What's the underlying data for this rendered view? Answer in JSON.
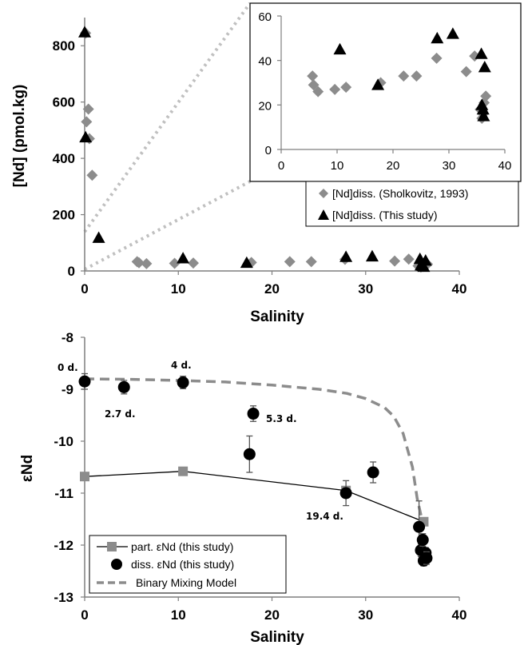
{
  "chart_data": [
    {
      "id": "top",
      "type": "scatter",
      "xlabel": "Salinity",
      "ylabel": "[Nd] (pmol.kg)",
      "xlim": [
        0,
        40
      ],
      "ylim": [
        0,
        900
      ],
      "xticks": [
        "0",
        "10",
        "20",
        "30",
        "40"
      ],
      "yticks": [
        "0",
        "200",
        "400",
        "600",
        "800"
      ],
      "grid": false,
      "series": [
        {
          "name": "[Nd]diss. (Sholkovitz, 1993)",
          "marker": "diamond",
          "color": "#8c8c8c",
          "points": [
            [
              0.1,
              845
            ],
            [
              0.2,
              530
            ],
            [
              0.4,
              575
            ],
            [
              0.5,
              470
            ],
            [
              0.8,
              340
            ],
            [
              5.6,
              33
            ],
            [
              5.8,
              29
            ],
            [
              6.6,
              26
            ],
            [
              9.6,
              27
            ],
            [
              11.6,
              28
            ],
            [
              17.8,
              30
            ],
            [
              21.9,
              33
            ],
            [
              24.2,
              33
            ],
            [
              27.8,
              41
            ],
            [
              33.1,
              35
            ],
            [
              34.6,
              42
            ],
            [
              35.6,
              18
            ],
            [
              35.9,
              14
            ],
            [
              36.1,
              16
            ],
            [
              36.3,
              21
            ],
            [
              36.6,
              24
            ]
          ]
        },
        {
          "name": "[Nd]diss. (This study)",
          "marker": "triangle",
          "color": "#000000",
          "points": [
            [
              0.0,
              848
            ],
            [
              0.1,
              475
            ],
            [
              1.5,
              118
            ],
            [
              10.5,
              45
            ],
            [
              17.3,
              29
            ],
            [
              27.9,
              50
            ],
            [
              30.7,
              52
            ],
            [
              35.8,
              43
            ],
            [
              35.9,
              20
            ],
            [
              36.1,
              18
            ],
            [
              36.2,
              15
            ],
            [
              36.4,
              37
            ]
          ]
        }
      ],
      "inset": {
        "xlim": [
          0,
          40
        ],
        "ylim": [
          0,
          60
        ],
        "xticks": [
          "0",
          "10",
          "20",
          "30",
          "40"
        ],
        "yticks": [
          "0",
          "20",
          "40",
          "60"
        ]
      },
      "legend": "below-inset"
    },
    {
      "id": "bottom",
      "type": "scatter",
      "xlabel": "Salinity",
      "ylabel": "εNd",
      "xlim": [
        0,
        40
      ],
      "ylim": [
        -13,
        -8
      ],
      "xticks": [
        "0",
        "10",
        "20",
        "30",
        "40"
      ],
      "yticks": [
        "-8",
        "-9",
        "-10",
        "-11",
        "-12",
        "-13"
      ],
      "grid": false,
      "series": [
        {
          "name": "part. εNd (this study)",
          "marker": "square-line",
          "color": "#8c8c8c",
          "points": [
            [
              0.0,
              -10.68
            ],
            [
              10.5,
              -10.58
            ],
            [
              27.9,
              -10.95
            ],
            [
              36.2,
              -11.55
            ]
          ]
        },
        {
          "name": "diss. εNd (this study)",
          "marker": "circle",
          "color": "#000000",
          "points": [
            [
              0.0,
              -8.85,
              0.15
            ],
            [
              4.2,
              -8.96,
              0.13
            ],
            [
              10.5,
              -8.87,
              0.12
            ],
            [
              17.6,
              -10.25,
              0.35
            ],
            [
              18.0,
              -9.47,
              0.15
            ],
            [
              27.9,
              -11.0,
              0.24
            ],
            [
              30.8,
              -10.6,
              0.2
            ],
            [
              35.7,
              -11.65,
              0.5
            ],
            [
              35.9,
              -12.1,
              0.12
            ],
            [
              36.1,
              -11.9,
              0.12
            ],
            [
              36.2,
              -12.3,
              0.1
            ],
            [
              36.4,
              -12.15,
              0.1
            ],
            [
              36.5,
              -12.25,
              0.12
            ]
          ]
        },
        {
          "name": "Binary Mixing Model",
          "marker": "dashed",
          "color": "#8c8c8c",
          "points": [
            [
              0,
              -8.8
            ],
            [
              5,
              -8.81
            ],
            [
              10,
              -8.83
            ],
            [
              15,
              -8.86
            ],
            [
              20,
              -8.92
            ],
            [
              25,
              -9.0
            ],
            [
              28,
              -9.08
            ],
            [
              30,
              -9.18
            ],
            [
              32,
              -9.35
            ],
            [
              33,
              -9.52
            ],
            [
              34,
              -9.85
            ],
            [
              35,
              -10.5
            ],
            [
              35.5,
              -11.1
            ],
            [
              36,
              -11.5
            ]
          ]
        }
      ],
      "annotations": [
        "0 d.",
        "4 d.",
        "2.7 d.",
        "5.3 d.",
        "19.4 d."
      ],
      "legend": "bottom-left"
    }
  ]
}
